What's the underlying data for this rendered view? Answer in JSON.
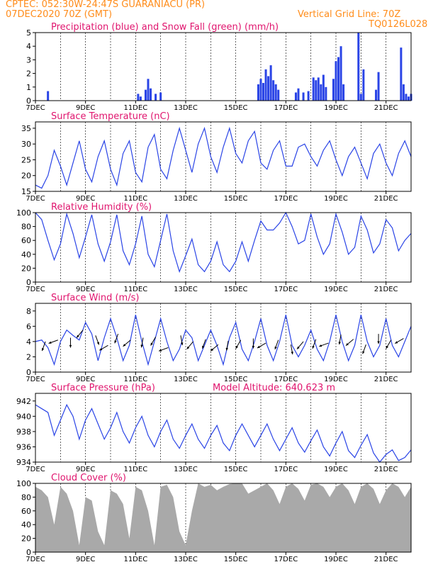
{
  "header": {
    "left_line1": "CPTEC:   052:30W-24:47S   GUARANIACU (PR)",
    "left_line2": "07DEC2020 70Z (GMT)",
    "right_line1": "Vertical Grid Line: 70Z",
    "right_line2": "TQ0126L028"
  },
  "colors": {
    "header": "#ff8c1a",
    "title": "#e0156e",
    "line": "#2a44e6",
    "precip": "#2a44e6",
    "snow": "#1aa31a",
    "cloud": "#a9a9a9",
    "arrow": "#000000"
  },
  "x_ticks": [
    "7DEC",
    "9DEC",
    "11DEC",
    "13DEC",
    "15DEC",
    "17DEC",
    "19DEC",
    "21DEC"
  ],
  "model_altitude_label": "Model Altitude: 640.623 m",
  "chart_data": [
    {
      "id": "precip",
      "type": "bar",
      "title": "Precipitation (blue) and Snow Fall (green) (mm/h)",
      "x_range": [
        7,
        22
      ],
      "ylim": [
        0,
        5
      ],
      "y_ticks": [
        0,
        1,
        2,
        3,
        4,
        5
      ],
      "x_labels": [
        "7DEC",
        "9DEC",
        "11DEC",
        "13DEC",
        "15DEC",
        "17DEC",
        "19DEC",
        "21DEC"
      ],
      "series": [
        {
          "name": "Precipitation",
          "x": [
            7.5,
            11.1,
            11.2,
            11.4,
            11.5,
            11.6,
            11.8,
            12.0,
            15.9,
            16.0,
            16.1,
            16.2,
            16.3,
            16.4,
            16.5,
            16.6,
            16.7,
            17.4,
            17.5,
            17.7,
            17.9,
            18.1,
            18.2,
            18.3,
            18.4,
            18.5,
            18.6,
            18.9,
            19.0,
            19.1,
            19.2,
            19.3,
            19.9,
            20.0,
            20.1,
            20.6,
            20.7,
            21.6,
            21.7,
            21.8,
            21.9,
            22.0
          ],
          "values": [
            0.7,
            0.5,
            0.3,
            0.8,
            1.6,
            0.9,
            0.5,
            0.6,
            1.2,
            1.6,
            1.3,
            2.3,
            1.8,
            2.6,
            1.5,
            1.2,
            0.8,
            0.6,
            0.9,
            0.6,
            0.7,
            1.7,
            1.5,
            1.7,
            1.2,
            1.9,
            1.0,
            1.6,
            2.9,
            3.2,
            4.0,
            1.2,
            5.0,
            0.5,
            2.3,
            0.8,
            2.1,
            3.9,
            1.2,
            0.5,
            0.3,
            0.5
          ]
        },
        {
          "name": "Snow Fall",
          "x": [],
          "values": []
        }
      ]
    },
    {
      "id": "temp",
      "type": "line",
      "title": "Surface Temperature (nC)",
      "x_range": [
        7,
        22
      ],
      "ylim": [
        15,
        37
      ],
      "y_ticks": [
        15,
        20,
        25,
        30,
        35
      ],
      "x_labels": [
        "7DEC",
        "9DEC",
        "11DEC",
        "13DEC",
        "15DEC",
        "17DEC",
        "19DEC",
        "21DEC"
      ],
      "series": [
        {
          "name": "",
          "x": [
            7.0,
            7.25,
            7.5,
            7.75,
            8.0,
            8.25,
            8.5,
            8.75,
            9.0,
            9.25,
            9.5,
            9.75,
            10.0,
            10.25,
            10.5,
            10.75,
            11.0,
            11.25,
            11.5,
            11.75,
            12.0,
            12.25,
            12.5,
            12.75,
            13.0,
            13.25,
            13.5,
            13.75,
            14.0,
            14.25,
            14.5,
            14.75,
            15.0,
            15.25,
            15.5,
            15.75,
            16.0,
            16.25,
            16.5,
            16.75,
            17.0,
            17.25,
            17.5,
            17.75,
            18.0,
            18.25,
            18.5,
            18.75,
            19.0,
            19.25,
            19.5,
            19.75,
            20.0,
            20.25,
            20.5,
            20.75,
            21.0,
            21.25,
            21.5,
            21.75,
            22.0
          ],
          "values": [
            17,
            16,
            20,
            28,
            23,
            17,
            24,
            31,
            22,
            18,
            26,
            31,
            22,
            17,
            27,
            31,
            21,
            18,
            29,
            33,
            22,
            19,
            28,
            35,
            28,
            21,
            30,
            35,
            26,
            21,
            29,
            35,
            27,
            24,
            31,
            34,
            24,
            22,
            28,
            31,
            23,
            23,
            29,
            30,
            26,
            23,
            28,
            31,
            25,
            20,
            26,
            29,
            24,
            19,
            27,
            30,
            24,
            20,
            27,
            31,
            26
          ]
        }
      ]
    },
    {
      "id": "humidity",
      "type": "line",
      "title": "Relative Humidity (%)",
      "x_range": [
        7,
        22
      ],
      "ylim": [
        0,
        100
      ],
      "y_ticks": [
        0,
        20,
        40,
        60,
        80,
        100
      ],
      "x_labels": [
        "7DEC",
        "9DEC",
        "11DEC",
        "13DEC",
        "15DEC",
        "17DEC",
        "19DEC",
        "21DEC"
      ],
      "series": [
        {
          "name": "",
          "x": [
            7.0,
            7.25,
            7.5,
            7.75,
            8.0,
            8.25,
            8.5,
            8.75,
            9.0,
            9.25,
            9.5,
            9.75,
            10.0,
            10.25,
            10.5,
            10.75,
            11.0,
            11.25,
            11.5,
            11.75,
            12.0,
            12.25,
            12.5,
            12.75,
            13.0,
            13.25,
            13.5,
            13.75,
            14.0,
            14.25,
            14.5,
            14.75,
            15.0,
            15.25,
            15.5,
            15.75,
            16.0,
            16.25,
            16.5,
            16.75,
            17.0,
            17.25,
            17.5,
            17.75,
            18.0,
            18.25,
            18.5,
            18.75,
            19.0,
            19.25,
            19.5,
            19.75,
            20.0,
            20.25,
            20.5,
            20.75,
            21.0,
            21.25,
            21.5,
            21.75,
            22.0
          ],
          "values": [
            100,
            90,
            60,
            32,
            55,
            98,
            70,
            35,
            65,
            97,
            55,
            30,
            58,
            97,
            45,
            25,
            55,
            95,
            40,
            22,
            60,
            98,
            45,
            15,
            38,
            62,
            25,
            15,
            30,
            58,
            25,
            15,
            30,
            58,
            30,
            60,
            88,
            75,
            75,
            85,
            100,
            80,
            55,
            60,
            98,
            65,
            40,
            55,
            98,
            72,
            40,
            50,
            95,
            75,
            42,
            55,
            90,
            78,
            45,
            60,
            70
          ]
        }
      ]
    },
    {
      "id": "wind",
      "type": "line",
      "title": "Surface Wind (m/s)",
      "x_range": [
        7,
        22
      ],
      "ylim": [
        0,
        9
      ],
      "y_ticks": [
        0,
        2,
        4,
        6,
        8
      ],
      "x_labels": [
        "7DEC",
        "9DEC",
        "11DEC",
        "13DEC",
        "15DEC",
        "17DEC",
        "19DEC",
        "21DEC"
      ],
      "series": [
        {
          "name": "",
          "x": [
            7.0,
            7.25,
            7.5,
            7.75,
            8.0,
            8.25,
            8.5,
            8.75,
            9.0,
            9.25,
            9.5,
            9.75,
            10.0,
            10.25,
            10.5,
            10.75,
            11.0,
            11.25,
            11.5,
            11.75,
            12.0,
            12.25,
            12.5,
            12.75,
            13.0,
            13.25,
            13.5,
            13.75,
            14.0,
            14.25,
            14.5,
            14.75,
            15.0,
            15.25,
            15.5,
            15.75,
            16.0,
            16.25,
            16.5,
            16.75,
            17.0,
            17.25,
            17.5,
            17.75,
            18.0,
            18.25,
            18.5,
            18.75,
            19.0,
            19.25,
            19.5,
            19.75,
            20.0,
            20.25,
            20.5,
            20.75,
            21.0,
            21.25,
            21.5,
            21.75,
            22.0
          ],
          "values": [
            4.0,
            4.2,
            3.2,
            1.0,
            4.0,
            5.5,
            4.8,
            4.2,
            6.5,
            5.0,
            1.5,
            4.5,
            7.0,
            4.5,
            1.5,
            3.5,
            7.5,
            4.0,
            1.0,
            4.0,
            7.0,
            4.0,
            1.5,
            3.0,
            5.5,
            4.5,
            1.5,
            3.5,
            5.5,
            3.5,
            1.0,
            4.5,
            6.5,
            3.0,
            1.5,
            4.0,
            7.0,
            3.5,
            1.5,
            4.0,
            7.5,
            3.5,
            2.0,
            3.5,
            5.5,
            3.0,
            1.5,
            4.0,
            7.5,
            4.0,
            1.5,
            3.5,
            7.5,
            4.0,
            2.0,
            3.5,
            7.0,
            3.5,
            2.0,
            4.0,
            6.0
          ]
        },
        {
          "name": "",
          "type": "vector",
          "x": [
            7.4,
            7.9,
            8.4,
            8.9,
            9.4,
            9.9,
            10.3,
            10.8,
            11.3,
            11.8,
            12.3,
            12.8,
            13.3,
            13.8,
            14.3,
            14.7,
            15.2,
            15.7,
            16.2,
            16.7,
            17.2,
            17.7,
            18.2,
            18.7,
            19.2,
            19.7,
            20.2,
            20.7,
            21.2,
            21.7
          ],
          "speed": [
            4.0,
            4.2,
            4.5,
            5.5,
            4.8,
            3.5,
            5.0,
            4.2,
            4.5,
            4.6,
            3.2,
            4.8,
            4.0,
            4.3,
            3.6,
            4.1,
            4.2,
            4.4,
            3.8,
            4.2,
            3.6,
            4.0,
            4.3,
            3.8,
            4.9,
            4.3,
            3.6,
            5.0,
            4.2,
            4.4
          ],
          "dir_deg": [
            200,
            250,
            180,
            220,
            160,
            240,
            200,
            230,
            190,
            210,
            250,
            170,
            220,
            200,
            230,
            190,
            210,
            180,
            240,
            200,
            170,
            220,
            200,
            250,
            190,
            230,
            200,
            180,
            210,
            240
          ]
        }
      ]
    },
    {
      "id": "pressure",
      "type": "line",
      "title": "Surface Pressure (hPa)",
      "x_range": [
        7,
        22
      ],
      "ylim": [
        934,
        943
      ],
      "y_ticks": [
        934,
        936,
        938,
        940,
        942
      ],
      "x_labels": [
        "7DEC",
        "9DEC",
        "11DEC",
        "13DEC",
        "15DEC",
        "17DEC",
        "19DEC",
        "21DEC"
      ],
      "series": [
        {
          "name": "",
          "x": [
            7.0,
            7.25,
            7.5,
            7.75,
            8.0,
            8.25,
            8.5,
            8.75,
            9.0,
            9.25,
            9.5,
            9.75,
            10.0,
            10.25,
            10.5,
            10.75,
            11.0,
            11.25,
            11.5,
            11.75,
            12.0,
            12.25,
            12.5,
            12.75,
            13.0,
            13.25,
            13.5,
            13.75,
            14.0,
            14.25,
            14.5,
            14.75,
            15.0,
            15.25,
            15.5,
            15.75,
            16.0,
            16.25,
            16.5,
            16.75,
            17.0,
            17.25,
            17.5,
            17.75,
            18.0,
            18.25,
            18.5,
            18.75,
            19.0,
            19.25,
            19.5,
            19.75,
            20.0,
            20.25,
            20.5,
            20.75,
            21.0,
            21.25,
            21.5,
            21.75,
            22.0
          ],
          "values": [
            941.5,
            941.0,
            940.5,
            937.5,
            939.5,
            941.5,
            940.0,
            937.0,
            939.5,
            941.0,
            939.0,
            937.0,
            938.5,
            940.5,
            938.0,
            936.5,
            938.5,
            940.0,
            937.5,
            936.0,
            938.0,
            939.5,
            937.0,
            935.8,
            937.5,
            939.0,
            937.0,
            935.8,
            937.5,
            938.8,
            936.5,
            935.5,
            937.5,
            939.0,
            937.5,
            936.0,
            937.5,
            939.0,
            937.0,
            935.5,
            937.0,
            938.5,
            936.5,
            935.3,
            936.8,
            938.2,
            936.0,
            934.8,
            936.5,
            938.0,
            935.5,
            934.6,
            936.2,
            937.6,
            935.2,
            934.0,
            935.0,
            935.6,
            934.2,
            934.6,
            935.6
          ]
        }
      ]
    },
    {
      "id": "cloud",
      "type": "area",
      "title": "Cloud Cover (%)",
      "x_range": [
        7,
        22
      ],
      "ylim": [
        0,
        100
      ],
      "y_ticks": [
        0,
        20,
        40,
        60,
        80,
        100
      ],
      "x_labels": [
        "7DEC",
        "9DEC",
        "11DEC",
        "13DEC",
        "15DEC",
        "17DEC",
        "19DEC",
        "21DEC"
      ],
      "series": [
        {
          "name": "",
          "x": [
            7.0,
            7.25,
            7.5,
            7.75,
            8.0,
            8.25,
            8.5,
            8.75,
            9.0,
            9.25,
            9.5,
            9.75,
            10.0,
            10.25,
            10.5,
            10.75,
            11.0,
            11.25,
            11.5,
            11.75,
            12.0,
            12.25,
            12.5,
            12.75,
            13.0,
            13.25,
            13.5,
            13.75,
            14.0,
            14.25,
            14.5,
            14.75,
            15.0,
            15.25,
            15.5,
            15.75,
            16.0,
            16.25,
            16.5,
            16.75,
            17.0,
            17.25,
            17.5,
            17.75,
            18.0,
            18.25,
            18.5,
            18.75,
            19.0,
            19.25,
            19.5,
            19.75,
            20.0,
            20.25,
            20.5,
            20.75,
            21.0,
            21.25,
            21.5,
            21.75,
            22.0
          ],
          "values": [
            95,
            90,
            80,
            40,
            95,
            85,
            60,
            10,
            80,
            75,
            30,
            10,
            90,
            85,
            70,
            20,
            95,
            90,
            60,
            10,
            95,
            98,
            80,
            30,
            10,
            60,
            100,
            95,
            98,
            90,
            95,
            99,
            100,
            100,
            85,
            90,
            95,
            100,
            90,
            70,
            95,
            100,
            92,
            75,
            98,
            100,
            95,
            80,
            95,
            100,
            90,
            70,
            95,
            100,
            92,
            70,
            90,
            100,
            95,
            80,
            95
          ]
        }
      ]
    }
  ]
}
